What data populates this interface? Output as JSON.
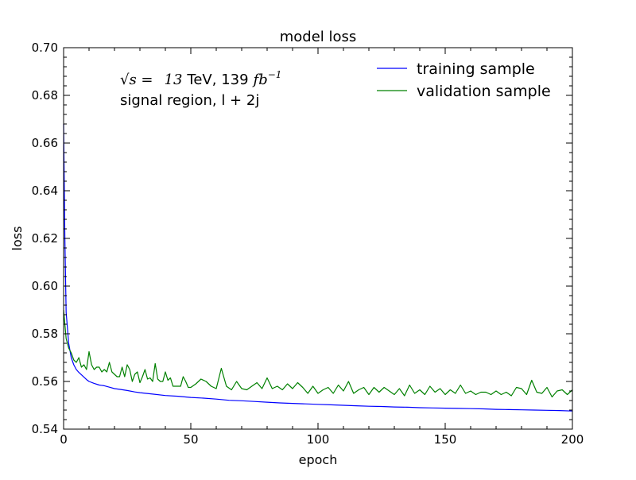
{
  "chart_data": {
    "type": "line",
    "title": "model loss",
    "xlabel": "epoch",
    "ylabel": "loss",
    "xlim": [
      0,
      200
    ],
    "ylim": [
      0.54,
      0.7
    ],
    "xticks": [
      0,
      50,
      100,
      150,
      200
    ],
    "xtick_labels": [
      "0",
      "50",
      "100",
      "150",
      "200"
    ],
    "yticks": [
      0.54,
      0.56,
      0.58,
      0.6,
      0.62,
      0.64,
      0.66,
      0.68,
      0.7
    ],
    "ytick_labels": [
      "0.54",
      "0.56",
      "0.58",
      "0.60",
      "0.62",
      "0.64",
      "0.66",
      "0.68",
      "0.70"
    ],
    "grid": false,
    "legend_position": "top-right",
    "annotations": {
      "energy_prefix": "√s =",
      "energy_value": "13",
      "energy_unit": "TeV, 139",
      "lumi_unit": "fb",
      "lumi_exp": "−1",
      "region": "signal region, l + 2j"
    },
    "series": [
      {
        "name": "training sample",
        "color": "#0000ff",
        "points": [
          [
            0,
            0.668
          ],
          [
            0.5,
            0.62
          ],
          [
            1,
            0.589
          ],
          [
            2,
            0.576
          ],
          [
            3,
            0.57
          ],
          [
            4,
            0.567
          ],
          [
            5,
            0.565
          ],
          [
            6,
            0.5638
          ],
          [
            7,
            0.5628
          ],
          [
            8,
            0.5618
          ],
          [
            9,
            0.5608
          ],
          [
            10,
            0.56
          ],
          [
            12,
            0.5592
          ],
          [
            14,
            0.5585
          ],
          [
            16,
            0.5582
          ],
          [
            18,
            0.5576
          ],
          [
            20,
            0.557
          ],
          [
            22,
            0.5567
          ],
          [
            25,
            0.5562
          ],
          [
            28,
            0.5556
          ],
          [
            30,
            0.5553
          ],
          [
            35,
            0.5547
          ],
          [
            40,
            0.5541
          ],
          [
            45,
            0.5538
          ],
          [
            50,
            0.5533
          ],
          [
            55,
            0.553
          ],
          [
            60,
            0.5526
          ],
          [
            65,
            0.5521
          ],
          [
            70,
            0.5519
          ],
          [
            75,
            0.5516
          ],
          [
            80,
            0.5513
          ],
          [
            85,
            0.551
          ],
          [
            90,
            0.5508
          ],
          [
            95,
            0.5506
          ],
          [
            100,
            0.5504
          ],
          [
            105,
            0.5502
          ],
          [
            110,
            0.55
          ],
          [
            115,
            0.5498
          ],
          [
            120,
            0.5496
          ],
          [
            125,
            0.5495
          ],
          [
            130,
            0.5493
          ],
          [
            135,
            0.5492
          ],
          [
            140,
            0.549
          ],
          [
            145,
            0.5489
          ],
          [
            150,
            0.5488
          ],
          [
            155,
            0.5487
          ],
          [
            160,
            0.5486
          ],
          [
            165,
            0.5485
          ],
          [
            170,
            0.5483
          ],
          [
            175,
            0.5482
          ],
          [
            180,
            0.5481
          ],
          [
            185,
            0.548
          ],
          [
            190,
            0.5479
          ],
          [
            195,
            0.5478
          ],
          [
            200,
            0.5476
          ]
        ]
      },
      {
        "name": "validation sample",
        "color": "#008000",
        "points": [
          [
            0,
            0.59
          ],
          [
            1,
            0.578
          ],
          [
            2,
            0.574
          ],
          [
            3,
            0.572
          ],
          [
            4,
            0.569
          ],
          [
            5,
            0.568
          ],
          [
            6,
            0.57
          ],
          [
            7,
            0.566
          ],
          [
            8,
            0.567
          ],
          [
            9,
            0.565
          ],
          [
            10,
            0.5725
          ],
          [
            11,
            0.567
          ],
          [
            12,
            0.565
          ],
          [
            13,
            0.566
          ],
          [
            14,
            0.566
          ],
          [
            15,
            0.564
          ],
          [
            16,
            0.565
          ],
          [
            17,
            0.564
          ],
          [
            18,
            0.568
          ],
          [
            19,
            0.564
          ],
          [
            20,
            0.563
          ],
          [
            21,
            0.562
          ],
          [
            22,
            0.562
          ],
          [
            23,
            0.566
          ],
          [
            24,
            0.562
          ],
          [
            25,
            0.567
          ],
          [
            26,
            0.565
          ],
          [
            27,
            0.56
          ],
          [
            28,
            0.563
          ],
          [
            29,
            0.564
          ],
          [
            30,
            0.5595
          ],
          [
            31,
            0.562
          ],
          [
            32,
            0.565
          ],
          [
            33,
            0.561
          ],
          [
            34,
            0.5615
          ],
          [
            35,
            0.56
          ],
          [
            36,
            0.5675
          ],
          [
            37,
            0.561
          ],
          [
            38,
            0.56
          ],
          [
            39,
            0.56
          ],
          [
            40,
            0.564
          ],
          [
            41,
            0.5605
          ],
          [
            42,
            0.5615
          ],
          [
            43,
            0.558
          ],
          [
            44,
            0.558
          ],
          [
            45,
            0.558
          ],
          [
            46,
            0.558
          ],
          [
            47,
            0.562
          ],
          [
            48,
            0.56
          ],
          [
            49,
            0.5575
          ],
          [
            50,
            0.5575
          ],
          [
            52,
            0.559
          ],
          [
            54,
            0.561
          ],
          [
            56,
            0.56
          ],
          [
            58,
            0.558
          ],
          [
            60,
            0.557
          ],
          [
            62,
            0.5655
          ],
          [
            64,
            0.558
          ],
          [
            66,
            0.5565
          ],
          [
            68,
            0.56
          ],
          [
            70,
            0.557
          ],
          [
            72,
            0.5565
          ],
          [
            74,
            0.558
          ],
          [
            76,
            0.5595
          ],
          [
            78,
            0.557
          ],
          [
            80,
            0.5615
          ],
          [
            82,
            0.557
          ],
          [
            84,
            0.558
          ],
          [
            86,
            0.5565
          ],
          [
            88,
            0.559
          ],
          [
            90,
            0.557
          ],
          [
            92,
            0.5595
          ],
          [
            94,
            0.5575
          ],
          [
            96,
            0.555
          ],
          [
            98,
            0.558
          ],
          [
            100,
            0.555
          ],
          [
            102,
            0.5565
          ],
          [
            104,
            0.5575
          ],
          [
            106,
            0.555
          ],
          [
            108,
            0.5585
          ],
          [
            110,
            0.556
          ],
          [
            112,
            0.56
          ],
          [
            114,
            0.555
          ],
          [
            116,
            0.5565
          ],
          [
            118,
            0.5575
          ],
          [
            120,
            0.5545
          ],
          [
            122,
            0.5575
          ],
          [
            124,
            0.5555
          ],
          [
            126,
            0.5575
          ],
          [
            128,
            0.556
          ],
          [
            130,
            0.5545
          ],
          [
            132,
            0.557
          ],
          [
            134,
            0.554
          ],
          [
            136,
            0.5585
          ],
          [
            138,
            0.555
          ],
          [
            140,
            0.5565
          ],
          [
            142,
            0.5545
          ],
          [
            144,
            0.558
          ],
          [
            146,
            0.5555
          ],
          [
            148,
            0.557
          ],
          [
            150,
            0.5545
          ],
          [
            152,
            0.5565
          ],
          [
            154,
            0.555
          ],
          [
            156,
            0.5585
          ],
          [
            158,
            0.555
          ],
          [
            160,
            0.556
          ],
          [
            162,
            0.5545
          ],
          [
            164,
            0.5555
          ],
          [
            166,
            0.5555
          ],
          [
            168,
            0.5545
          ],
          [
            170,
            0.556
          ],
          [
            172,
            0.5545
          ],
          [
            174,
            0.5555
          ],
          [
            176,
            0.554
          ],
          [
            178,
            0.5575
          ],
          [
            180,
            0.557
          ],
          [
            182,
            0.5545
          ],
          [
            184,
            0.5605
          ],
          [
            186,
            0.5555
          ],
          [
            188,
            0.555
          ],
          [
            190,
            0.5575
          ],
          [
            192,
            0.5535
          ],
          [
            194,
            0.556
          ],
          [
            196,
            0.5565
          ],
          [
            198,
            0.5545
          ],
          [
            200,
            0.5565
          ]
        ]
      }
    ]
  }
}
